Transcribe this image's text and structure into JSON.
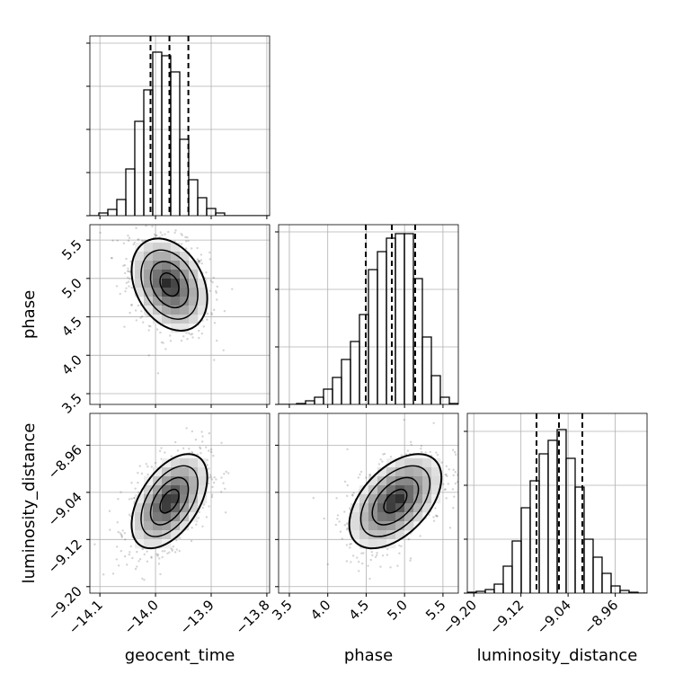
{
  "chart_data": {
    "type": "corner",
    "params": [
      {
        "label": "geocent_time",
        "lim": [
          -14.118,
          -13.795
        ],
        "ticks": [
          {
            "value": -14.1,
            "label": "−14.1"
          },
          {
            "value": -14.0,
            "label": "−14.0"
          },
          {
            "value": -13.9,
            "label": "−13.9"
          },
          {
            "value": -13.8,
            "label": "−13.8"
          }
        ],
        "quantiles": [
          -14.009,
          -13.975,
          -13.941
        ],
        "hist": {
          "bins": [
            -14.118,
            -14.1019,
            -14.0857,
            -14.0696,
            -14.0534,
            -14.0373,
            -14.0211,
            -14.005,
            -13.9888,
            -13.9727,
            -13.9565,
            -13.9404,
            -13.9242,
            -13.9081,
            -13.8919,
            -13.8758,
            -13.8596,
            -13.8435,
            -13.8273,
            -13.8112,
            -13.795
          ],
          "counts": [
            0,
            3,
            7,
            18,
            52,
            105,
            140,
            182,
            178,
            160,
            85,
            40,
            20,
            8,
            3,
            0,
            0,
            0,
            0,
            0
          ],
          "ylim": [
            0,
            200
          ],
          "yticks": [
            0,
            48,
            96,
            144,
            192
          ]
        }
      },
      {
        "label": "phase",
        "lim": [
          3.36,
          5.7
        ],
        "ticks": [
          3.5,
          {
            "value": 4.0,
            "label": "4.0"
          },
          4.5,
          {
            "value": 5.0,
            "label": "5.0"
          },
          5.5
        ],
        "quantiles": [
          4.495,
          4.834,
          5.138
        ],
        "hist": {
          "bins": [
            3.36,
            3.477,
            3.594,
            3.711,
            3.828,
            3.945,
            4.062,
            4.179,
            4.296,
            4.413,
            4.53,
            4.647,
            4.764,
            4.881,
            4.998,
            5.115,
            5.232,
            5.349,
            5.466,
            5.583,
            5.7
          ],
          "counts": [
            0,
            0,
            1,
            4,
            8,
            17,
            30,
            50,
            70,
            100,
            150,
            170,
            185,
            190,
            190,
            140,
            75,
            32,
            8,
            1
          ],
          "ylim": [
            0,
            200
          ],
          "yticks": [
            0,
            64,
            128,
            192
          ]
        }
      },
      {
        "label": "luminosity_distance",
        "lim": [
          -9.211,
          -8.906
        ],
        "ticks": [
          {
            "value": -9.2,
            "label": "−9.20"
          },
          {
            "value": -9.12,
            "label": "−9.12"
          },
          {
            "value": -9.04,
            "label": "−9.04"
          },
          {
            "value": -8.96,
            "label": "−8.96"
          }
        ],
        "quantiles": [
          -9.0936,
          -9.0555,
          -9.0158
        ],
        "hist": {
          "bins": [
            -9.211,
            -9.1958,
            -9.1805,
            -9.1653,
            -9.15,
            -9.1348,
            -9.1195,
            -9.1043,
            -9.089,
            -9.0738,
            -9.0585,
            -9.0433,
            -9.028,
            -9.0128,
            -8.9975,
            -8.9823,
            -8.967,
            -8.9518,
            -8.9365,
            -8.9213,
            -8.906
          ],
          "counts": [
            1,
            2,
            4,
            10,
            30,
            58,
            95,
            125,
            155,
            170,
            182,
            150,
            118,
            60,
            40,
            22,
            8,
            3,
            1,
            0
          ],
          "ylim": [
            0,
            200
          ],
          "yticks": [
            0,
            60,
            120,
            180
          ]
        }
      }
    ],
    "pairs": [
      {
        "x": 0,
        "y": 1,
        "center": [
          -13.975,
          4.92
        ],
        "sigma": [
          0.034,
          0.3
        ],
        "corr": -0.3
      },
      {
        "x": 0,
        "y": 2,
        "center": [
          -13.975,
          -9.055
        ],
        "sigma": [
          0.034,
          0.04
        ],
        "corr": 0.5
      },
      {
        "x": 1,
        "y": 2,
        "center": [
          4.88,
          -9.055
        ],
        "sigma": [
          0.3,
          0.04
        ],
        "corr": 0.5
      }
    ],
    "contour_sigmas": [
      0.5,
      1,
      1.5,
      2
    ],
    "grid": true
  }
}
